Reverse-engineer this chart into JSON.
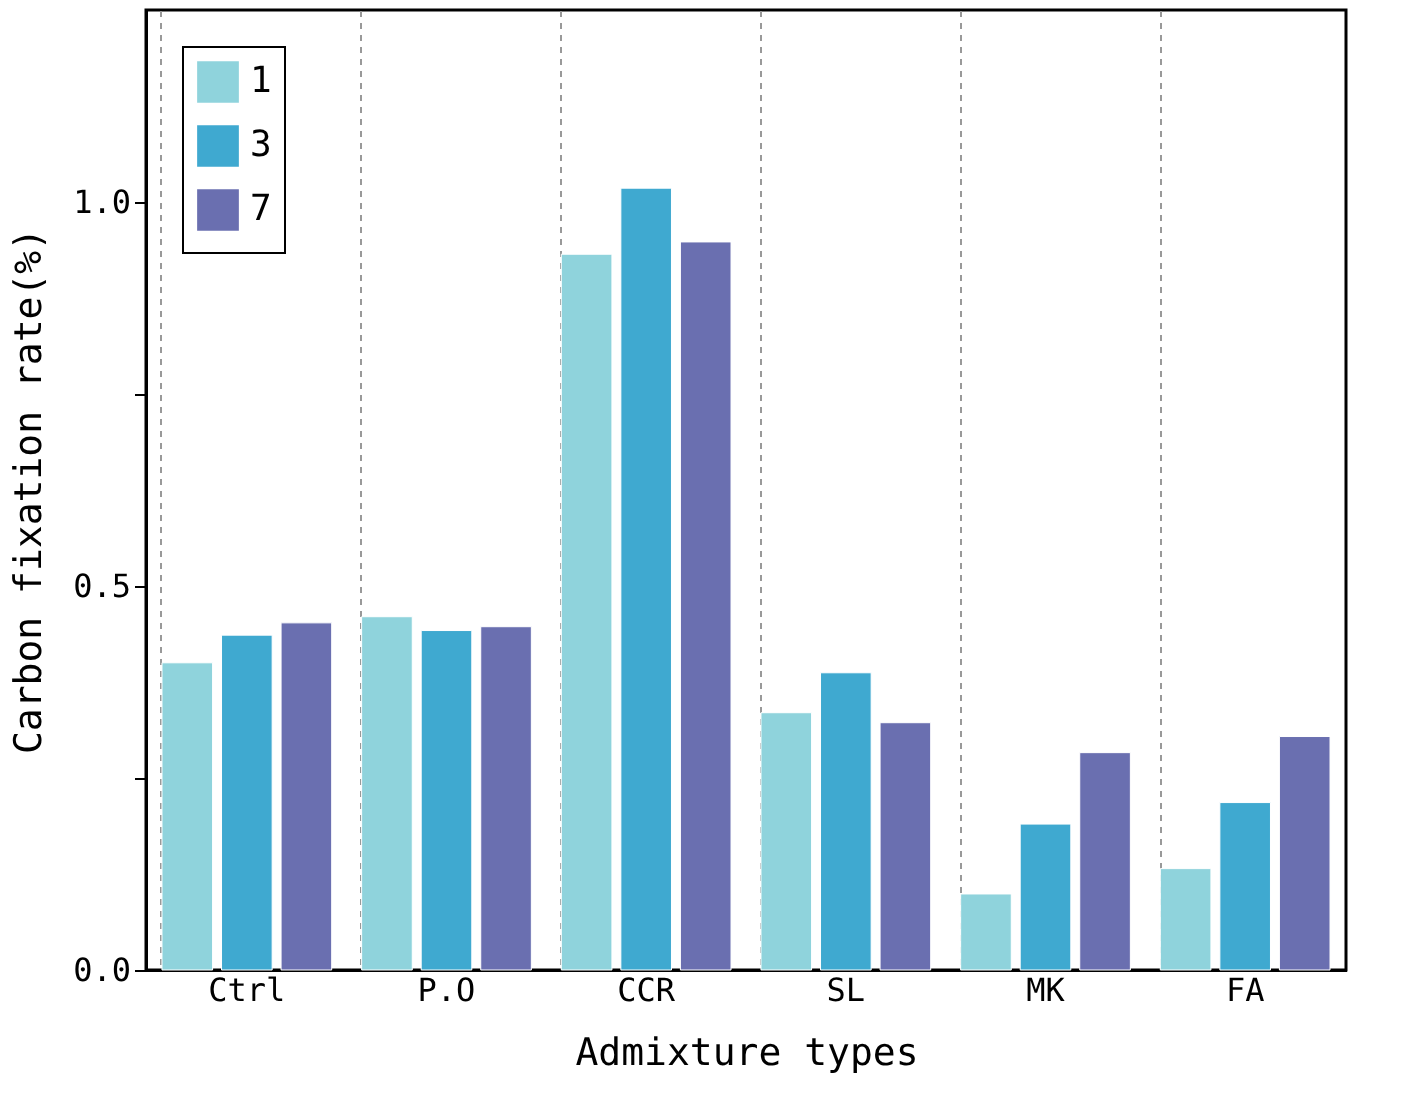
{
  "chart_data": {
    "type": "bar",
    "xlabel": "Admixture types",
    "ylabel": "Carbon fixation rate(%)",
    "categories": [
      "Ctrl",
      "P.O",
      "CCR",
      "SL",
      "MK",
      "FA"
    ],
    "series": [
      {
        "name": "1",
        "color": "#8fd3dc",
        "values": [
          0.4,
          0.46,
          0.932,
          0.335,
          0.099,
          0.132
        ]
      },
      {
        "name": "3",
        "color": "#3fa9d0",
        "values": [
          0.436,
          0.442,
          1.018,
          0.387,
          0.19,
          0.218
        ]
      },
      {
        "name": "7",
        "color": "#6a6fb0",
        "values": [
          0.452,
          0.447,
          0.948,
          0.322,
          0.283,
          0.304
        ]
      }
    ],
    "ylim": [
      0,
      1.25
    ],
    "yticks": [
      {
        "value": 0,
        "label": "0.0"
      },
      {
        "value": 0.25,
        "label": null
      },
      {
        "value": 0.5,
        "label": "0.5"
      },
      {
        "value": 0.75,
        "label": null
      },
      {
        "value": 1.0,
        "label": "1.0"
      }
    ],
    "grid": "x",
    "legend": "top left"
  }
}
